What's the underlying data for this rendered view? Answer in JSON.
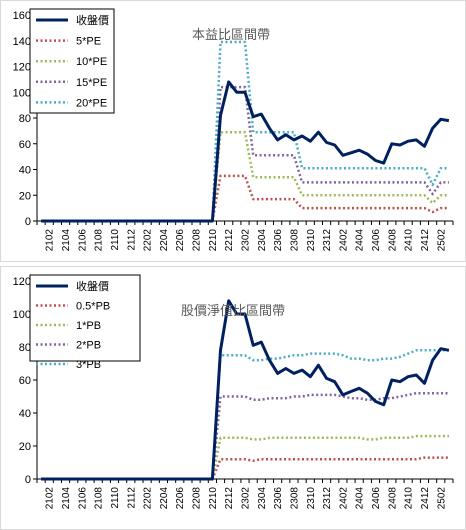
{
  "chart_data": [
    {
      "type": "line",
      "title": "本益比區間帶",
      "xlabel": "",
      "ylabel": "",
      "ylim": [
        0,
        160
      ],
      "yticks": [
        0,
        20,
        40,
        60,
        80,
        100,
        120,
        140,
        160
      ],
      "grid": false,
      "legend": "top-left",
      "x": [
        "2101",
        "2102",
        "2103",
        "2104",
        "2105",
        "2106",
        "2107",
        "2108",
        "2109",
        "2110",
        "2111",
        "2112",
        "2201",
        "2202",
        "2203",
        "2204",
        "2205",
        "2206",
        "2207",
        "2208",
        "2209",
        "2210",
        "2211",
        "2212",
        "2301",
        "2302",
        "2303",
        "2304",
        "2305",
        "2306",
        "2307",
        "2308",
        "2309",
        "2310",
        "2311",
        "2312",
        "2401",
        "2402",
        "2403",
        "2404",
        "2405",
        "2406",
        "2407",
        "2408",
        "2409",
        "2410",
        "2411",
        "2412",
        "2501",
        "2502",
        "2503"
      ],
      "xticks": [
        "2102",
        "2104",
        "2106",
        "2108",
        "2110",
        "2112",
        "2202",
        "2204",
        "2206",
        "2208",
        "2210",
        "2212",
        "2302",
        "2304",
        "2306",
        "2308",
        "2310",
        "2312",
        "2402",
        "2404",
        "2406",
        "2408",
        "2410",
        "2412",
        "2502"
      ],
      "series": [
        {
          "name": "收盤價",
          "color": "#002060",
          "dash": "solid",
          "width": 3,
          "values": [
            0,
            0,
            0,
            0,
            0,
            0,
            0,
            0,
            0,
            0,
            0,
            0,
            0,
            0,
            0,
            0,
            0,
            0,
            0,
            0,
            0,
            0,
            82,
            108,
            100,
            100,
            81,
            83,
            72,
            63,
            67,
            63,
            66,
            62,
            69,
            61,
            59,
            51,
            53,
            55,
            52,
            47,
            45,
            60,
            59,
            62,
            63,
            58,
            72,
            79,
            78
          ]
        },
        {
          "name": "5*PE",
          "color": "#c0504d",
          "dash": "dot",
          "width": 2.5,
          "values": [
            0,
            0,
            0,
            0,
            0,
            0,
            0,
            0,
            0,
            0,
            0,
            0,
            0,
            0,
            0,
            0,
            0,
            0,
            0,
            0,
            0,
            0,
            35,
            35,
            35,
            35,
            17,
            17,
            17,
            17,
            17,
            17,
            10,
            10,
            10,
            10,
            10,
            10,
            10,
            10,
            10,
            10,
            10,
            10,
            10,
            10,
            10,
            10,
            7,
            10,
            10
          ]
        },
        {
          "name": "10*PE",
          "color": "#9bbb59",
          "dash": "dot",
          "width": 2.5,
          "values": [
            0,
            0,
            0,
            0,
            0,
            0,
            0,
            0,
            0,
            0,
            0,
            0,
            0,
            0,
            0,
            0,
            0,
            0,
            0,
            0,
            0,
            0,
            69,
            69,
            69,
            69,
            34,
            34,
            34,
            34,
            34,
            34,
            20,
            20,
            20,
            20,
            20,
            20,
            20,
            20,
            20,
            20,
            20,
            20,
            20,
            20,
            20,
            20,
            14,
            20,
            20
          ]
        },
        {
          "name": "15*PE",
          "color": "#8064a2",
          "dash": "dot",
          "width": 2.5,
          "values": [
            0,
            0,
            0,
            0,
            0,
            0,
            0,
            0,
            0,
            0,
            0,
            0,
            0,
            0,
            0,
            0,
            0,
            0,
            0,
            0,
            0,
            0,
            104,
            104,
            104,
            104,
            51,
            51,
            51,
            51,
            51,
            51,
            30,
            30,
            30,
            30,
            30,
            30,
            30,
            30,
            30,
            30,
            30,
            30,
            30,
            30,
            30,
            30,
            21,
            30,
            30
          ]
        },
        {
          "name": "20*PE",
          "color": "#4bacc6",
          "dash": "dot",
          "width": 2.5,
          "values": [
            0,
            0,
            0,
            0,
            0,
            0,
            0,
            0,
            0,
            0,
            0,
            0,
            0,
            0,
            0,
            0,
            0,
            0,
            0,
            0,
            0,
            0,
            139,
            139,
            139,
            139,
            69,
            69,
            69,
            69,
            69,
            69,
            41,
            41,
            41,
            41,
            41,
            41,
            41,
            41,
            41,
            41,
            41,
            41,
            41,
            41,
            41,
            41,
            28,
            41,
            41
          ]
        }
      ]
    },
    {
      "type": "line",
      "title": "股價淨值比區間帶",
      "xlabel": "",
      "ylabel": "",
      "ylim": [
        0,
        120
      ],
      "yticks": [
        0,
        20,
        40,
        60,
        80,
        100,
        120
      ],
      "grid": false,
      "legend": "top-left",
      "x": [
        "2101",
        "2102",
        "2103",
        "2104",
        "2105",
        "2106",
        "2107",
        "2108",
        "2109",
        "2110",
        "2111",
        "2112",
        "2201",
        "2202",
        "2203",
        "2204",
        "2205",
        "2206",
        "2207",
        "2208",
        "2209",
        "2210",
        "2211",
        "2212",
        "2301",
        "2302",
        "2303",
        "2304",
        "2305",
        "2306",
        "2307",
        "2308",
        "2309",
        "2310",
        "2311",
        "2312",
        "2401",
        "2402",
        "2403",
        "2404",
        "2405",
        "2406",
        "2407",
        "2408",
        "2409",
        "2410",
        "2411",
        "2412",
        "2501",
        "2502",
        "2503"
      ],
      "xticks": [
        "2102",
        "2104",
        "2106",
        "2108",
        "2110",
        "2112",
        "2202",
        "2204",
        "2206",
        "2208",
        "2210",
        "2212",
        "2302",
        "2304",
        "2306",
        "2308",
        "2310",
        "2312",
        "2402",
        "2404",
        "2406",
        "2408",
        "2410",
        "2412",
        "2502"
      ],
      "series": [
        {
          "name": "收盤價",
          "color": "#002060",
          "dash": "solid",
          "width": 3,
          "values": [
            0,
            0,
            0,
            0,
            0,
            0,
            0,
            0,
            0,
            0,
            0,
            0,
            0,
            0,
            0,
            0,
            0,
            0,
            0,
            0,
            0,
            0,
            78,
            108,
            100,
            100,
            81,
            83,
            72,
            64,
            67,
            64,
            66,
            62,
            69,
            61,
            59,
            51,
            53,
            55,
            52,
            47,
            45,
            60,
            59,
            62,
            63,
            58,
            72,
            79,
            78
          ]
        },
        {
          "name": "0.5*PB",
          "color": "#c0504d",
          "dash": "dot",
          "width": 2.5,
          "values": [
            0,
            0,
            0,
            0,
            0,
            0,
            0,
            0,
            0,
            0,
            0,
            0,
            0,
            0,
            0,
            0,
            0,
            0,
            0,
            0,
            0,
            0,
            12,
            12,
            12,
            12,
            11,
            12,
            12,
            12,
            12,
            12,
            12,
            12,
            12,
            12,
            12,
            12,
            12,
            12,
            12,
            12,
            12,
            12,
            12,
            12,
            12,
            13,
            13,
            13,
            13
          ]
        },
        {
          "name": "1*PB",
          "color": "#9bbb59",
          "dash": "dot",
          "width": 2.5,
          "values": [
            0,
            0,
            0,
            0,
            0,
            0,
            0,
            0,
            0,
            0,
            0,
            0,
            0,
            0,
            0,
            0,
            0,
            0,
            0,
            0,
            0,
            0,
            25,
            25,
            25,
            25,
            24,
            24,
            25,
            25,
            25,
            25,
            25,
            25,
            25,
            25,
            25,
            25,
            25,
            25,
            24,
            24,
            25,
            25,
            25,
            25,
            26,
            26,
            26,
            26,
            26
          ]
        },
        {
          "name": "2*PB",
          "color": "#8064a2",
          "dash": "dot",
          "width": 2.5,
          "values": [
            0,
            0,
            0,
            0,
            0,
            0,
            0,
            0,
            0,
            0,
            0,
            0,
            0,
            0,
            0,
            0,
            0,
            0,
            0,
            0,
            0,
            0,
            50,
            50,
            50,
            50,
            48,
            48,
            49,
            49,
            49,
            50,
            50,
            51,
            51,
            51,
            51,
            50,
            49,
            49,
            48,
            48,
            49,
            49,
            50,
            51,
            52,
            52,
            52,
            52,
            52
          ]
        },
        {
          "name": "3*PB",
          "color": "#4bacc6",
          "dash": "dot",
          "width": 2.5,
          "values": [
            0,
            0,
            0,
            0,
            0,
            0,
            0,
            0,
            0,
            0,
            0,
            0,
            0,
            0,
            0,
            0,
            0,
            0,
            0,
            0,
            0,
            0,
            75,
            75,
            75,
            75,
            72,
            72,
            73,
            73,
            74,
            75,
            75,
            76,
            76,
            76,
            76,
            75,
            73,
            73,
            72,
            72,
            73,
            73,
            74,
            76,
            78,
            78,
            78,
            78,
            78
          ]
        }
      ]
    }
  ]
}
